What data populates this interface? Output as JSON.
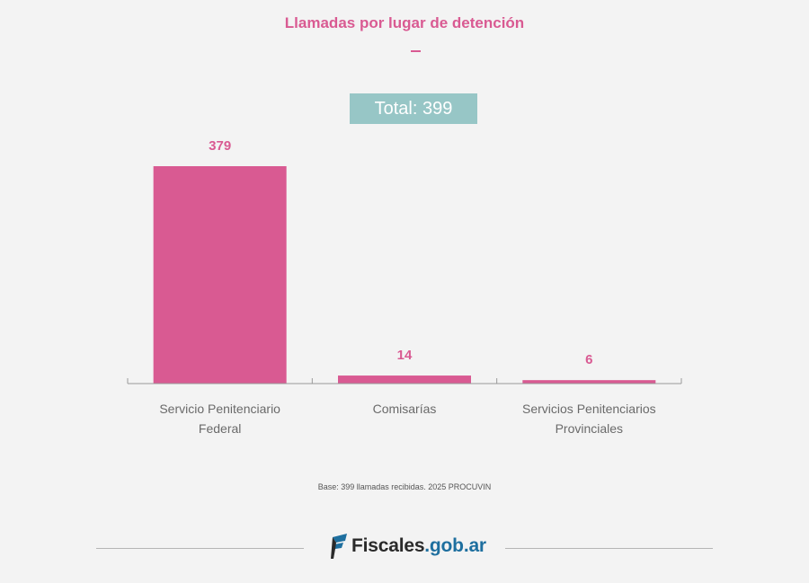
{
  "colors": {
    "accent": "#d95a92",
    "total_box": "#97c6c6",
    "axis": "#999999",
    "label": "#6a6a6a"
  },
  "header": {
    "title": "Llamadas por lugar de detención"
  },
  "total": {
    "label": "Total: 399"
  },
  "chart_data": {
    "type": "bar",
    "title": "Llamadas por lugar de detención",
    "categories": [
      [
        "Servicio Penitenciario",
        "Federal"
      ],
      [
        "Comisarías"
      ],
      [
        "Servicios Penitenciarios",
        "Provinciales"
      ]
    ],
    "values": [
      379,
      14,
      6
    ],
    "value_labels": [
      "379",
      "14",
      "6"
    ],
    "ylim": [
      0,
      379
    ],
    "grid": false,
    "legend": "none",
    "xlabel": "",
    "ylabel": ""
  },
  "source": {
    "text": "Base: 399 llamadas recibidas. 2025 PROCUVIN"
  },
  "footer": {
    "logo_part1": "Fiscales",
    "logo_part2": ".gob.ar",
    "logo_icon": "fiscales-flag-icon"
  }
}
